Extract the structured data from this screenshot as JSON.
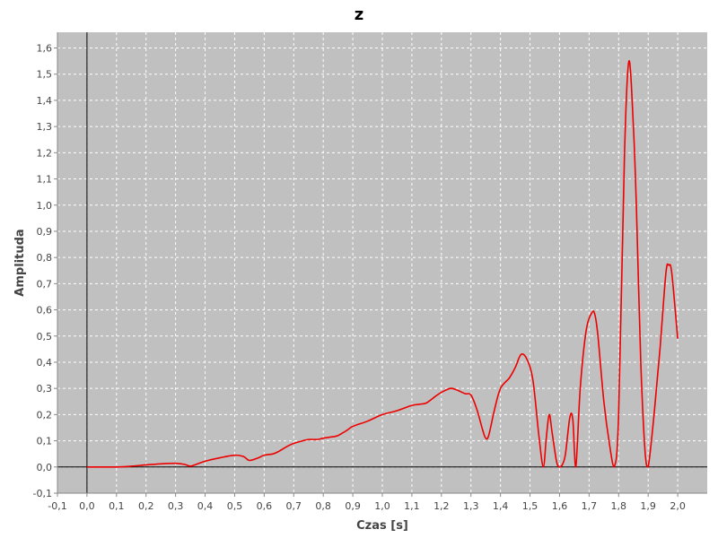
{
  "chart_data": {
    "type": "line",
    "title": "z",
    "xlabel": "Czas [s]",
    "ylabel": "Amplituda",
    "xlim": [
      -0.1,
      2.1
    ],
    "ylim": [
      -0.1,
      1.66
    ],
    "grid": true,
    "x_ticks": [
      "-0,1",
      "0,0",
      "0,1",
      "0,2",
      "0,3",
      "0,4",
      "0,5",
      "0,6",
      "0,7",
      "0,8",
      "0,9",
      "1,0",
      "1,1",
      "1,2",
      "1,3",
      "1,4",
      "1,5",
      "1,6",
      "1,7",
      "1,8",
      "1,9",
      "2,0"
    ],
    "x_tick_values": [
      -0.1,
      0.0,
      0.1,
      0.2,
      0.3,
      0.4,
      0.5,
      0.6,
      0.7,
      0.8,
      0.9,
      1.0,
      1.1,
      1.2,
      1.3,
      1.4,
      1.5,
      1.6,
      1.7,
      1.8,
      1.9,
      2.0
    ],
    "y_ticks": [
      "-0,1",
      "0,0",
      "0,1",
      "0,2",
      "0,3",
      "0,4",
      "0,5",
      "0,6",
      "0,7",
      "0,8",
      "0,9",
      "1,0",
      "1,1",
      "1,2",
      "1,3",
      "1,4",
      "1,5",
      "1,6"
    ],
    "y_tick_values": [
      -0.1,
      0.0,
      0.1,
      0.2,
      0.3,
      0.4,
      0.5,
      0.6,
      0.7,
      0.8,
      0.9,
      1.0,
      1.1,
      1.2,
      1.3,
      1.4,
      1.5,
      1.6
    ],
    "colors": {
      "plot_bg": "#c0c0c0",
      "series": "#ee0000",
      "zero_axis": "#000000",
      "grid": "#ffffff"
    },
    "series": [
      {
        "color": "#ee0000",
        "x": [
          0.0,
          0.05,
          0.1,
          0.15,
          0.2,
          0.25,
          0.3,
          0.33,
          0.35,
          0.37,
          0.4,
          0.45,
          0.5,
          0.53,
          0.55,
          0.58,
          0.6,
          0.63,
          0.65,
          0.68,
          0.7,
          0.73,
          0.75,
          0.78,
          0.8,
          0.83,
          0.85,
          0.88,
          0.9,
          0.95,
          1.0,
          1.05,
          1.1,
          1.13,
          1.15,
          1.18,
          1.2,
          1.23,
          1.25,
          1.28,
          1.3,
          1.32,
          1.34,
          1.35,
          1.36,
          1.38,
          1.4,
          1.43,
          1.45,
          1.47,
          1.49,
          1.51,
          1.53,
          1.545,
          1.555,
          1.565,
          1.575,
          1.59,
          1.6,
          1.61,
          1.62,
          1.635,
          1.645,
          1.655,
          1.67,
          1.69,
          1.71,
          1.72,
          1.73,
          1.75,
          1.77,
          1.785,
          1.8,
          1.82,
          1.835,
          1.85,
          1.86,
          1.875,
          1.89,
          1.9,
          1.92,
          1.94,
          1.96,
          1.97,
          1.98,
          2.0
        ],
        "y": [
          0.0,
          0.0,
          0.0,
          0.003,
          0.008,
          0.012,
          0.014,
          0.01,
          0.003,
          0.01,
          0.022,
          0.035,
          0.045,
          0.04,
          0.025,
          0.035,
          0.045,
          0.05,
          0.06,
          0.08,
          0.09,
          0.1,
          0.105,
          0.105,
          0.11,
          0.115,
          0.12,
          0.14,
          0.155,
          0.175,
          0.2,
          0.215,
          0.235,
          0.24,
          0.245,
          0.27,
          0.285,
          0.3,
          0.295,
          0.28,
          0.275,
          0.22,
          0.14,
          0.11,
          0.12,
          0.22,
          0.3,
          0.34,
          0.38,
          0.43,
          0.41,
          0.33,
          0.12,
          0.0,
          0.11,
          0.2,
          0.13,
          0.02,
          0.0,
          0.01,
          0.05,
          0.19,
          0.18,
          0.0,
          0.3,
          0.52,
          0.59,
          0.58,
          0.5,
          0.25,
          0.08,
          0.0,
          0.2,
          1.2,
          1.55,
          1.3,
          1.0,
          0.4,
          0.05,
          0.0,
          0.2,
          0.45,
          0.74,
          0.77,
          0.74,
          0.49
        ]
      }
    ]
  }
}
